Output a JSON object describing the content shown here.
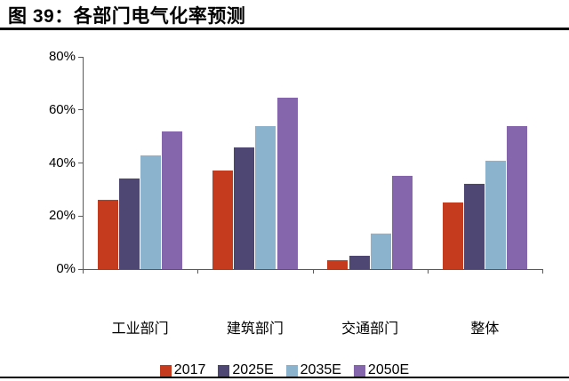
{
  "figure": {
    "title": "图 39：各部门电气化率预测"
  },
  "chart_data": {
    "type": "bar",
    "title": "各部门电气化率预测",
    "categories": [
      "工业部门",
      "建筑部门",
      "交通部门",
      "整体"
    ],
    "series": [
      {
        "name": "2017",
        "color": "#c53b1e",
        "values": [
          26,
          37,
          3.5,
          25
        ]
      },
      {
        "name": "2025E",
        "color": "#4e4673",
        "values": [
          34,
          46,
          5,
          32
        ]
      },
      {
        "name": "2035E",
        "color": "#8bb3cd",
        "values": [
          43,
          54,
          13.5,
          41
        ]
      },
      {
        "name": "2050E",
        "color": "#8565ac",
        "values": [
          52,
          64.5,
          35,
          54
        ]
      }
    ],
    "xlabel": "",
    "ylabel": "",
    "ylim": [
      0,
      80
    ],
    "yticks": [
      0,
      20,
      40,
      60,
      80
    ],
    "ytick_labels": [
      "0%",
      "20%",
      "40%",
      "60%",
      "80%"
    ],
    "grid": false,
    "legend_position": "bottom"
  },
  "colors": {
    "axis": "#595959",
    "rule": "#000000",
    "text": "#000000"
  }
}
